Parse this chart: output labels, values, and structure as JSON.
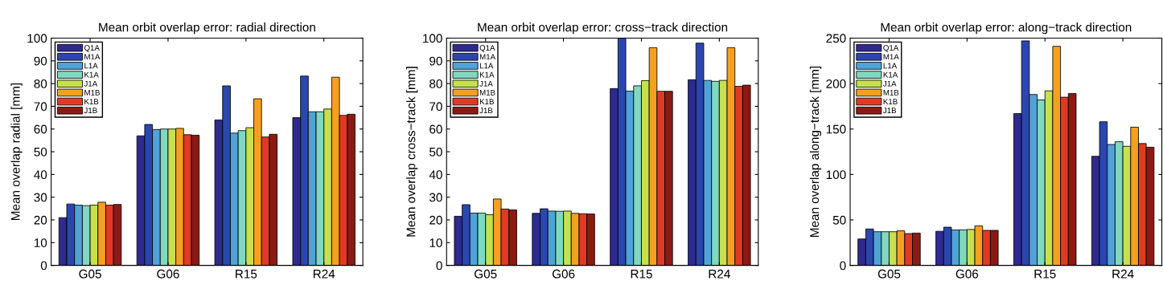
{
  "chart_data": [
    {
      "type": "bar",
      "title": "Mean orbit overlap error: radial direction",
      "ylabel": "Mean overlap radial [mm]",
      "categories": [
        "G05",
        "G06",
        "R15",
        "R24"
      ],
      "ylim": [
        0,
        100
      ],
      "yticks": [
        0,
        10,
        20,
        30,
        40,
        50,
        60,
        70,
        80,
        90,
        100
      ],
      "grid": false,
      "legend": "top left",
      "series": [
        {
          "name": "Q1A",
          "color": "#2e2a8f",
          "values": [
            21,
            57,
            64,
            65
          ]
        },
        {
          "name": "M1A",
          "color": "#2a46b0",
          "values": [
            27,
            62,
            79,
            83.3
          ]
        },
        {
          "name": "L1A",
          "color": "#4fa3d8",
          "values": [
            26.5,
            59.8,
            58.2,
            67.6
          ]
        },
        {
          "name": "K1A",
          "color": "#7fd8c0",
          "values": [
            26.3,
            60,
            59.3,
            67.6
          ]
        },
        {
          "name": "J1A",
          "color": "#c6e04e",
          "values": [
            26.5,
            60,
            60.6,
            68.8
          ]
        },
        {
          "name": "M1B",
          "color": "#f5a020",
          "values": [
            27.8,
            60.3,
            73.3,
            82.8
          ]
        },
        {
          "name": "K1B",
          "color": "#e03a25",
          "values": [
            26.5,
            57.5,
            56.5,
            66
          ]
        },
        {
          "name": "J1B",
          "color": "#8b1a14",
          "values": [
            26.8,
            57.3,
            57.7,
            66.5
          ]
        }
      ]
    },
    {
      "type": "bar",
      "title": "Mean orbit overlap error: cross−track direction",
      "ylabel": "Mean overlap cross−track [mm]",
      "categories": [
        "G05",
        "G06",
        "R15",
        "R24"
      ],
      "ylim": [
        0,
        100
      ],
      "yticks": [
        0,
        10,
        20,
        30,
        40,
        50,
        60,
        70,
        80,
        90,
        100
      ],
      "grid": false,
      "legend": "top left",
      "series": [
        {
          "name": "Q1A",
          "color": "#2e2a8f",
          "values": [
            21.6,
            22.9,
            77.8,
            81.7
          ]
        },
        {
          "name": "M1A",
          "color": "#2a46b0",
          "values": [
            26.7,
            24.9,
            100,
            97.8
          ]
        },
        {
          "name": "L1A",
          "color": "#4fa3d8",
          "values": [
            23,
            23.9,
            76.7,
            81.4
          ]
        },
        {
          "name": "K1A",
          "color": "#7fd8c0",
          "values": [
            23,
            23.8,
            79,
            81
          ]
        },
        {
          "name": "J1A",
          "color": "#c6e04e",
          "values": [
            22.3,
            23.9,
            81.3,
            81.4
          ]
        },
        {
          "name": "M1B",
          "color": "#f5a020",
          "values": [
            29.2,
            22.9,
            95.8,
            95.8
          ]
        },
        {
          "name": "K1B",
          "color": "#e03a25",
          "values": [
            24.8,
            22.7,
            76.6,
            78.8
          ]
        },
        {
          "name": "J1B",
          "color": "#8b1a14",
          "values": [
            24.4,
            22.6,
            76.6,
            79.3
          ]
        }
      ]
    },
    {
      "type": "bar",
      "title": "Mean orbit overlap error: along−track direction",
      "ylabel": "Mean overlap along−track [mm]",
      "categories": [
        "G05",
        "G06",
        "R15",
        "R24"
      ],
      "ylim": [
        0,
        250
      ],
      "yticks": [
        0,
        50,
        100,
        150,
        200,
        250
      ],
      "grid": false,
      "legend": "top left",
      "series": [
        {
          "name": "Q1A",
          "color": "#2e2a8f",
          "values": [
            29,
            37.5,
            167,
            120
          ]
        },
        {
          "name": "M1A",
          "color": "#2a46b0",
          "values": [
            40,
            42,
            247,
            158
          ]
        },
        {
          "name": "L1A",
          "color": "#4fa3d8",
          "values": [
            37,
            39,
            188,
            133
          ]
        },
        {
          "name": "K1A",
          "color": "#7fd8c0",
          "values": [
            37,
            39,
            182,
            136
          ]
        },
        {
          "name": "J1A",
          "color": "#c6e04e",
          "values": [
            37,
            39.5,
            192,
            131
          ]
        },
        {
          "name": "M1B",
          "color": "#f5a020",
          "values": [
            38,
            43.5,
            241,
            152
          ]
        },
        {
          "name": "K1B",
          "color": "#e03a25",
          "values": [
            35,
            38.5,
            185,
            134
          ]
        },
        {
          "name": "J1B",
          "color": "#8b1a14",
          "values": [
            35.5,
            38.5,
            189,
            130
          ]
        }
      ]
    }
  ]
}
